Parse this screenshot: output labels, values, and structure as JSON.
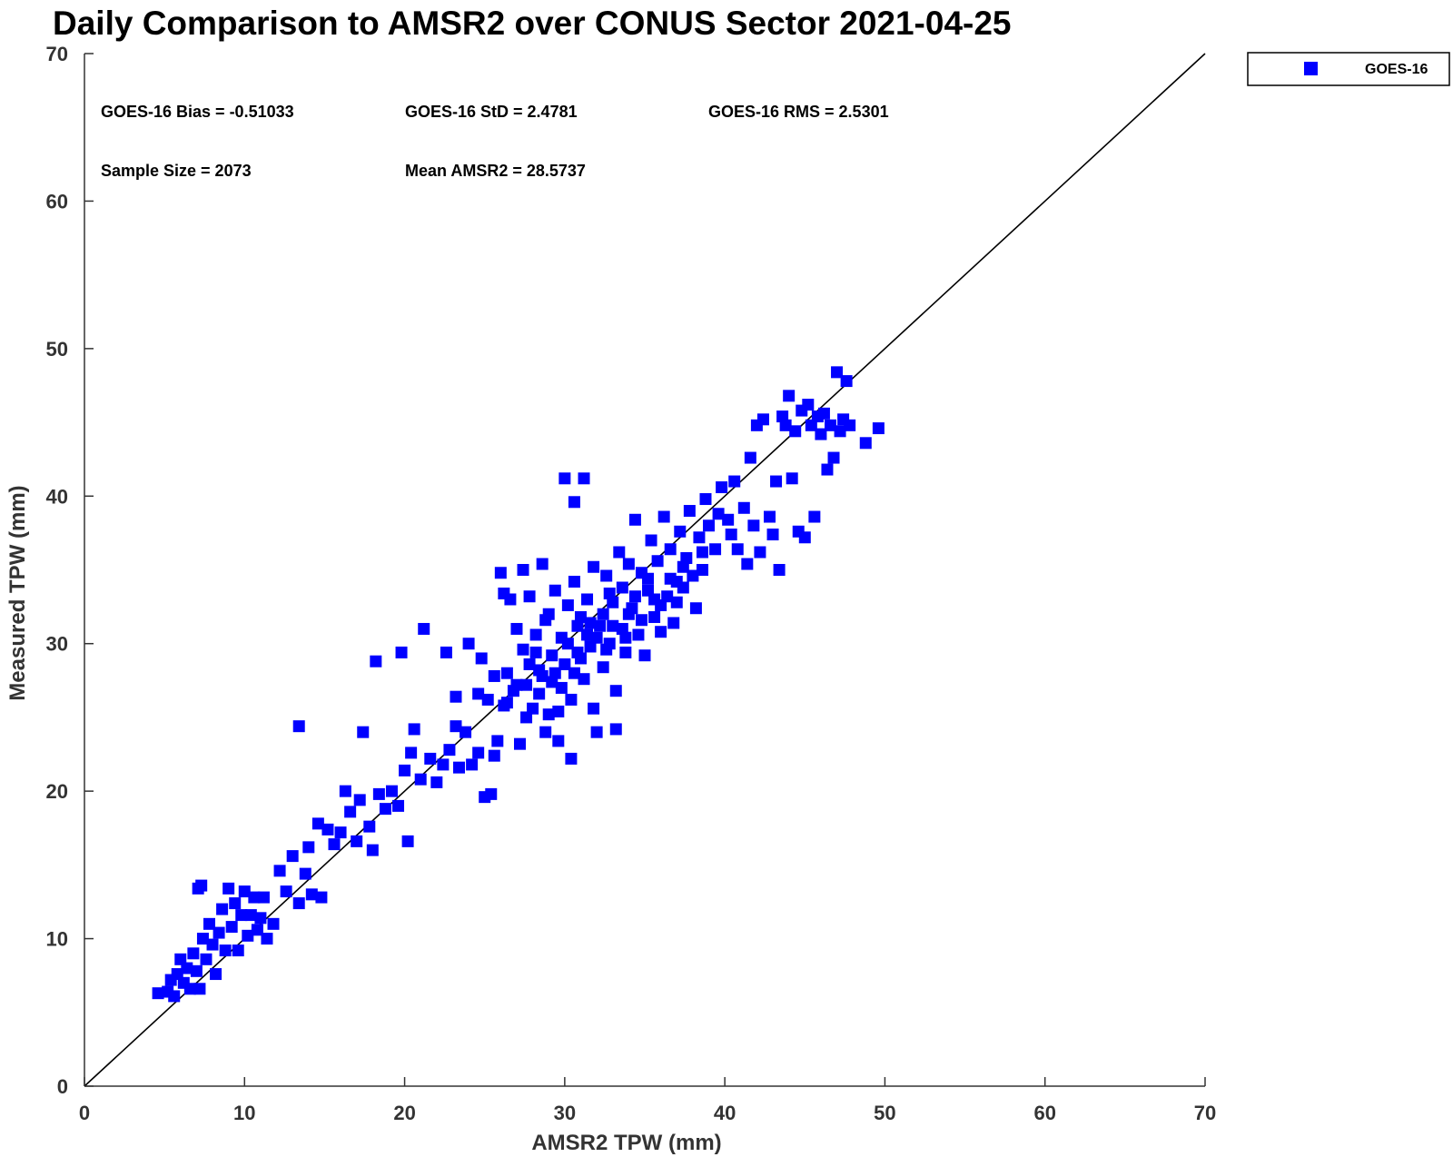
{
  "chart_data": {
    "type": "scatter",
    "title": "Daily Comparison to AMSR2 over CONUS Sector 2021-04-25",
    "xlabel": "AMSR2 TPW (mm)",
    "ylabel": "Measured TPW (mm)",
    "xlim": [
      0,
      70
    ],
    "ylim": [
      0,
      70
    ],
    "xticks": [
      0,
      10,
      20,
      30,
      40,
      50,
      60,
      70
    ],
    "yticks": [
      0,
      10,
      20,
      30,
      40,
      50,
      60,
      70
    ],
    "grid": false,
    "legend_placement": "outside-top-right",
    "reference_line": {
      "from": [
        0,
        0
      ],
      "to": [
        70,
        70
      ],
      "color": "#000000"
    },
    "annotations": [
      "GOES-16 Bias = -0.51033",
      "GOES-16 StD = 2.4781",
      "GOES-16 RMS = 2.5301",
      "Sample Size = 2073",
      "Mean AMSR2 = 28.5737"
    ],
    "series": [
      {
        "name": "GOES-16",
        "color": "#0000ff",
        "marker": "square",
        "points": [
          [
            4.6,
            6.3
          ],
          [
            5.2,
            6.4
          ],
          [
            5.4,
            7.2
          ],
          [
            5.6,
            6.1
          ],
          [
            5.8,
            7.6
          ],
          [
            6.0,
            8.6
          ],
          [
            6.2,
            7.0
          ],
          [
            6.4,
            8.0
          ],
          [
            6.6,
            6.6
          ],
          [
            6.8,
            9.0
          ],
          [
            7.0,
            7.8
          ],
          [
            7.1,
            13.4
          ],
          [
            7.3,
            13.6
          ],
          [
            7.2,
            6.6
          ],
          [
            7.4,
            10.0
          ],
          [
            7.6,
            8.6
          ],
          [
            7.8,
            11.0
          ],
          [
            8.0,
            9.6
          ],
          [
            8.2,
            7.6
          ],
          [
            8.4,
            10.4
          ],
          [
            8.6,
            12.0
          ],
          [
            8.8,
            9.2
          ],
          [
            9.0,
            13.4
          ],
          [
            9.2,
            10.8
          ],
          [
            9.4,
            12.4
          ],
          [
            9.6,
            9.2
          ],
          [
            9.8,
            11.6
          ],
          [
            10.0,
            13.2
          ],
          [
            10.2,
            10.2
          ],
          [
            10.4,
            11.6
          ],
          [
            10.6,
            12.8
          ],
          [
            10.8,
            10.6
          ],
          [
            11.0,
            11.4
          ],
          [
            11.2,
            12.8
          ],
          [
            11.4,
            10.0
          ],
          [
            11.8,
            11.0
          ],
          [
            12.2,
            14.6
          ],
          [
            12.6,
            13.2
          ],
          [
            13.0,
            15.6
          ],
          [
            13.4,
            12.4
          ],
          [
            13.4,
            24.4
          ],
          [
            13.8,
            14.4
          ],
          [
            14.0,
            16.2
          ],
          [
            14.2,
            13.0
          ],
          [
            14.6,
            17.8
          ],
          [
            14.8,
            12.8
          ],
          [
            15.2,
            17.4
          ],
          [
            15.6,
            16.4
          ],
          [
            16.0,
            17.2
          ],
          [
            16.3,
            20.0
          ],
          [
            16.6,
            18.6
          ],
          [
            17.0,
            16.6
          ],
          [
            17.2,
            19.4
          ],
          [
            17.4,
            24.0
          ],
          [
            17.8,
            17.6
          ],
          [
            18.0,
            16.0
          ],
          [
            18.2,
            28.8
          ],
          [
            18.4,
            19.8
          ],
          [
            18.8,
            18.8
          ],
          [
            19.2,
            20.0
          ],
          [
            19.6,
            19.0
          ],
          [
            19.8,
            29.4
          ],
          [
            20.0,
            21.4
          ],
          [
            20.2,
            16.6
          ],
          [
            20.4,
            22.6
          ],
          [
            20.6,
            24.2
          ],
          [
            21.0,
            20.8
          ],
          [
            21.2,
            31.0
          ],
          [
            21.6,
            22.2
          ],
          [
            22.0,
            20.6
          ],
          [
            22.4,
            21.8
          ],
          [
            22.6,
            29.4
          ],
          [
            22.8,
            22.8
          ],
          [
            23.2,
            24.4
          ],
          [
            23.4,
            21.6
          ],
          [
            23.8,
            24.0
          ],
          [
            24.0,
            30.0
          ],
          [
            24.2,
            21.8
          ],
          [
            24.6,
            22.6
          ],
          [
            24.8,
            29.0
          ],
          [
            25.0,
            19.6
          ],
          [
            25.2,
            26.2
          ],
          [
            25.4,
            19.8
          ],
          [
            25.6,
            27.8
          ],
          [
            25.8,
            23.4
          ],
          [
            26.0,
            34.8
          ],
          [
            26.2,
            25.8
          ],
          [
            26.4,
            28.0
          ],
          [
            26.6,
            33.0
          ],
          [
            26.8,
            26.8
          ],
          [
            27.0,
            31.0
          ],
          [
            27.2,
            23.2
          ],
          [
            27.4,
            29.6
          ],
          [
            27.6,
            27.2
          ],
          [
            27.8,
            33.2
          ],
          [
            28.0,
            25.6
          ],
          [
            28.2,
            30.6
          ],
          [
            28.4,
            28.2
          ],
          [
            28.6,
            35.4
          ],
          [
            28.8,
            24.0
          ],
          [
            29.0,
            32.0
          ],
          [
            29.2,
            27.4
          ],
          [
            29.4,
            33.6
          ],
          [
            29.6,
            25.4
          ],
          [
            29.8,
            30.4
          ],
          [
            30.0,
            41.2
          ],
          [
            30.0,
            28.6
          ],
          [
            30.2,
            32.6
          ],
          [
            30.4,
            26.2
          ],
          [
            30.6,
            39.6
          ],
          [
            30.6,
            34.2
          ],
          [
            30.8,
            29.4
          ],
          [
            31.0,
            31.8
          ],
          [
            31.2,
            41.2
          ],
          [
            31.2,
            27.6
          ],
          [
            31.4,
            33.0
          ],
          [
            31.6,
            29.8
          ],
          [
            31.8,
            35.2
          ],
          [
            32.0,
            24.0
          ],
          [
            32.2,
            31.2
          ],
          [
            32.4,
            28.4
          ],
          [
            32.6,
            34.6
          ],
          [
            32.8,
            30.0
          ],
          [
            33.0,
            32.8
          ],
          [
            33.2,
            26.8
          ],
          [
            33.4,
            36.2
          ],
          [
            33.6,
            31.0
          ],
          [
            33.8,
            29.4
          ],
          [
            34.0,
            35.4
          ],
          [
            34.2,
            32.4
          ],
          [
            34.4,
            38.4
          ],
          [
            34.6,
            30.6
          ],
          [
            34.8,
            34.8
          ],
          [
            35.0,
            29.2
          ],
          [
            35.2,
            33.6
          ],
          [
            35.4,
            37.0
          ],
          [
            35.6,
            31.8
          ],
          [
            35.8,
            35.6
          ],
          [
            36.0,
            32.6
          ],
          [
            36.2,
            38.6
          ],
          [
            36.4,
            33.2
          ],
          [
            36.6,
            36.4
          ],
          [
            36.8,
            31.4
          ],
          [
            37.0,
            34.2
          ],
          [
            37.2,
            37.6
          ],
          [
            37.4,
            33.8
          ],
          [
            37.6,
            35.8
          ],
          [
            37.8,
            39.0
          ],
          [
            38.0,
            34.6
          ],
          [
            38.2,
            32.4
          ],
          [
            38.4,
            37.2
          ],
          [
            38.6,
            35.0
          ],
          [
            38.8,
            39.8
          ],
          [
            39.0,
            38.0
          ],
          [
            39.4,
            36.4
          ],
          [
            39.8,
            40.6
          ],
          [
            40.2,
            38.4
          ],
          [
            40.6,
            41.0
          ],
          [
            40.8,
            36.4
          ],
          [
            41.2,
            39.2
          ],
          [
            41.4,
            35.4
          ],
          [
            41.6,
            42.6
          ],
          [
            41.8,
            38.0
          ],
          [
            42.0,
            44.8
          ],
          [
            42.2,
            36.2
          ],
          [
            42.4,
            45.2
          ],
          [
            42.8,
            38.6
          ],
          [
            43.0,
            37.4
          ],
          [
            43.2,
            41.0
          ],
          [
            43.4,
            35.0
          ],
          [
            43.6,
            45.4
          ],
          [
            43.8,
            44.8
          ],
          [
            44.0,
            46.8
          ],
          [
            44.2,
            41.2
          ],
          [
            44.4,
            44.4
          ],
          [
            44.6,
            37.6
          ],
          [
            44.8,
            45.8
          ],
          [
            45.0,
            37.2
          ],
          [
            45.2,
            46.2
          ],
          [
            45.4,
            44.8
          ],
          [
            45.6,
            38.6
          ],
          [
            45.8,
            45.4
          ],
          [
            46.0,
            44.2
          ],
          [
            46.2,
            45.6
          ],
          [
            46.4,
            41.8
          ],
          [
            46.6,
            44.8
          ],
          [
            46.8,
            42.6
          ],
          [
            47.0,
            48.4
          ],
          [
            47.2,
            44.4
          ],
          [
            47.4,
            45.2
          ],
          [
            47.6,
            47.8
          ],
          [
            47.8,
            44.8
          ],
          [
            48.8,
            43.6
          ],
          [
            49.6,
            44.6
          ],
          [
            30.4,
            22.2
          ],
          [
            29.6,
            23.4
          ],
          [
            31.8,
            25.6
          ],
          [
            33.2,
            24.2
          ],
          [
            26.2,
            33.4
          ],
          [
            27.4,
            35.0
          ],
          [
            25.6,
            22.4
          ],
          [
            24.6,
            26.6
          ],
          [
            23.2,
            26.4
          ],
          [
            28.2,
            29.4
          ],
          [
            28.8,
            31.6
          ],
          [
            29.4,
            28.0
          ],
          [
            30.2,
            30.0
          ],
          [
            31.0,
            29.0
          ],
          [
            31.6,
            31.4
          ],
          [
            32.4,
            32.0
          ],
          [
            32.8,
            33.4
          ],
          [
            33.6,
            33.8
          ],
          [
            34.4,
            33.2
          ],
          [
            35.2,
            34.4
          ],
          [
            30.8,
            31.2
          ],
          [
            29.8,
            27.0
          ],
          [
            28.4,
            26.6
          ],
          [
            27.8,
            28.6
          ],
          [
            27.0,
            27.2
          ],
          [
            26.4,
            26.0
          ],
          [
            32.0,
            30.4
          ],
          [
            33.0,
            31.2
          ],
          [
            34.0,
            32.0
          ],
          [
            35.6,
            33.0
          ],
          [
            36.6,
            34.4
          ],
          [
            37.4,
            35.2
          ],
          [
            38.6,
            36.2
          ],
          [
            39.6,
            38.8
          ],
          [
            40.4,
            37.4
          ],
          [
            27.6,
            25.0
          ],
          [
            28.6,
            27.8
          ],
          [
            29.2,
            29.2
          ],
          [
            30.6,
            28.0
          ],
          [
            31.4,
            30.6
          ],
          [
            32.6,
            29.6
          ],
          [
            33.8,
            30.4
          ],
          [
            34.8,
            31.6
          ],
          [
            36.0,
            30.8
          ],
          [
            37.0,
            32.8
          ],
          [
            29.0,
            25.2
          ]
        ]
      }
    ]
  }
}
